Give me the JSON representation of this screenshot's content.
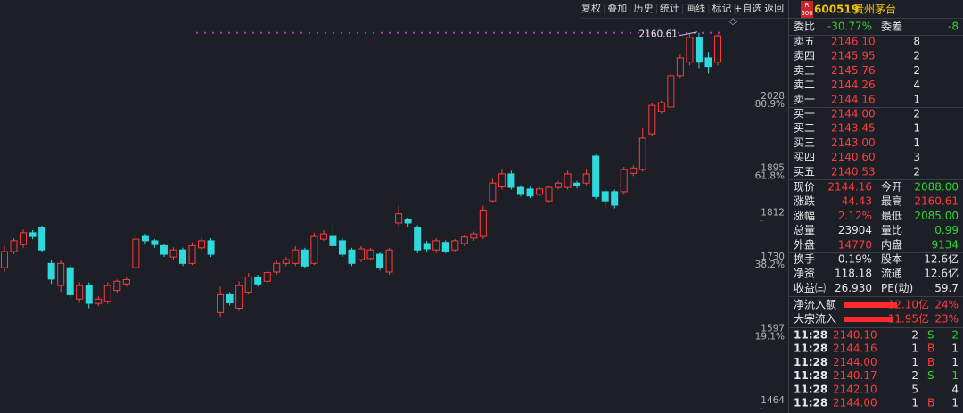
{
  "toolbar": [
    "复权",
    "叠加",
    "历史",
    "统计",
    "画线",
    "标记",
    "+自选",
    "返回"
  ],
  "header": {
    "badge_top": "R",
    "badge_bottom": "300",
    "code": "600519",
    "name": "贵州茅台"
  },
  "ratio": {
    "label": "委比",
    "value": "-30.77%",
    "diff_label": "委差",
    "diff": "-8"
  },
  "asks": [
    [
      "卖五",
      "2146.10",
      "8"
    ],
    [
      "卖四",
      "2145.95",
      "2"
    ],
    [
      "卖三",
      "2145.76",
      "2"
    ],
    [
      "卖二",
      "2144.26",
      "4"
    ],
    [
      "卖一",
      "2144.16",
      "1"
    ]
  ],
  "bids": [
    [
      "买一",
      "2144.00",
      "2"
    ],
    [
      "买二",
      "2143.45",
      "1"
    ],
    [
      "买三",
      "2143.00",
      "1"
    ],
    [
      "买四",
      "2140.60",
      "3"
    ],
    [
      "买五",
      "2140.53",
      "2"
    ]
  ],
  "stats": [
    [
      "现价",
      "2144.16",
      "今开",
      "2088.00"
    ],
    [
      "涨跌",
      "44.43",
      "最高",
      "2160.61"
    ],
    [
      "涨幅",
      "2.12%",
      "最低",
      "2085.00"
    ],
    [
      "总量",
      "23904",
      "量比",
      "0.99"
    ],
    [
      "外盘",
      "14770",
      "内盘",
      "9134"
    ],
    [
      "换手",
      "0.19%",
      "股本",
      "12.6亿"
    ],
    [
      "净资",
      "118.18",
      "流通",
      "12.6亿"
    ],
    [
      "收益㈢",
      "26.930",
      "PE(动)",
      "59.7"
    ]
  ],
  "flows": [
    [
      "净流入额",
      "12.10亿",
      "24%"
    ],
    [
      "大宗流入",
      "11.95亿",
      "23%"
    ]
  ],
  "trades": [
    [
      "11:28",
      "2140.10",
      "2",
      "S",
      "2"
    ],
    [
      "11:28",
      "2144.16",
      "1",
      "B",
      "1"
    ],
    [
      "11:28",
      "2144.00",
      "1",
      "B",
      "1"
    ],
    [
      "11:28",
      "2140.17",
      "2",
      "S",
      "1"
    ],
    [
      "11:28",
      "2142.10",
      "5",
      null,
      "4"
    ],
    [
      "11:28",
      "2144.00",
      "1",
      "B",
      "1"
    ]
  ],
  "chart_data": {
    "type": "candlestick",
    "up_color": "#ff3c3c",
    "down_color": "#2ed8dc",
    "marker_color": "#c030c0",
    "ylim": [
      1464,
      2180
    ],
    "yticks": [
      2028,
      1895,
      1812,
      1730,
      1597,
      1464
    ],
    "pct_ticks": [
      {
        "value": 80.9,
        "label": "80.9%"
      },
      {
        "value": 61.8,
        "label": "61.8%"
      },
      {
        "value": 38.2,
        "label": "38.2%"
      },
      {
        "value": 19.1,
        "label": "19.1%"
      }
    ],
    "open": [
      1725,
      1755,
      1768,
      1790,
      1800,
      1733,
      1692,
      1725,
      1667,
      1692,
      1659,
      1662,
      1683,
      1695,
      1725,
      1783,
      1775,
      1766,
      1745,
      1758,
      1733,
      1762,
      1775,
      1642,
      1675,
      1650,
      1680,
      1708,
      1700,
      1717,
      1733,
      1733,
      1758,
      1733,
      1778,
      1783,
      1775,
      1758,
      1740,
      1742,
      1750,
      1717,
      1808,
      1815,
      1800,
      1770,
      1758,
      1772,
      1758,
      1770,
      1780,
      1783,
      1849,
      1875,
      1899,
      1874,
      1871,
      1861,
      1849,
      1874,
      1874,
      1882,
      1882,
      1932,
      1866,
      1866,
      1866,
      1900,
      1907,
      1973,
      2015,
      2023,
      2081,
      2106,
      2152,
      2114,
      2106
    ],
    "high": [
      1765,
      1780,
      1796,
      1795,
      1803,
      1740,
      1738,
      1730,
      1698,
      1698,
      1672,
      1698,
      1703,
      1708,
      1785,
      1788,
      1778,
      1770,
      1763,
      1762,
      1772,
      1780,
      1780,
      1690,
      1680,
      1700,
      1715,
      1712,
      1720,
      1738,
      1745,
      1765,
      1762,
      1790,
      1795,
      1805,
      1780,
      1762,
      1765,
      1762,
      1755,
      1762,
      1840,
      1818,
      1804,
      1775,
      1780,
      1776,
      1778,
      1786,
      1792,
      1840,
      1890,
      1908,
      1905,
      1878,
      1875,
      1875,
      1878,
      1886,
      1905,
      1886,
      1908,
      1935,
      1870,
      1870,
      1912,
      1915,
      1985,
      2030,
      2035,
      2088,
      2120,
      2158,
      2160.61,
      2125,
      2158
    ],
    "low": [
      1717,
      1750,
      1762,
      1778,
      1755,
      1695,
      1680,
      1668,
      1660,
      1650,
      1654,
      1658,
      1678,
      1690,
      1720,
      1770,
      1762,
      1745,
      1740,
      1728,
      1730,
      1758,
      1745,
      1634,
      1655,
      1645,
      1675,
      1690,
      1695,
      1712,
      1728,
      1728,
      1725,
      1730,
      1775,
      1762,
      1745,
      1728,
      1735,
      1738,
      1720,
      1712,
      1800,
      1800,
      1752,
      1755,
      1752,
      1752,
      1755,
      1765,
      1775,
      1778,
      1845,
      1870,
      1870,
      1857,
      1854,
      1857,
      1845,
      1870,
      1870,
      1872,
      1878,
      1852,
      1835,
      1835,
      1860,
      1895,
      1903,
      1968,
      2010,
      2018,
      2075,
      2100,
      2095,
      2085,
      2100
    ],
    "close": [
      1755,
      1775,
      1790,
      1783,
      1758,
      1704,
      1733,
      1675,
      1692,
      1659,
      1667,
      1692,
      1700,
      1703,
      1778,
      1775,
      1768,
      1750,
      1758,
      1733,
      1766,
      1775,
      1750,
      1675,
      1660,
      1692,
      1708,
      1695,
      1716,
      1733,
      1740,
      1758,
      1728,
      1783,
      1788,
      1766,
      1750,
      1733,
      1760,
      1758,
      1725,
      1758,
      1825,
      1808,
      1758,
      1760,
      1775,
      1756,
      1775,
      1782,
      1788,
      1832,
      1882,
      1899,
      1874,
      1861,
      1858,
      1871,
      1874,
      1882,
      1899,
      1877,
      1899,
      1857,
      1849,
      1841,
      1907,
      1910,
      1965,
      2026,
      2031,
      2081,
      2114,
      2152,
      2106,
      2098,
      2155
    ]
  }
}
